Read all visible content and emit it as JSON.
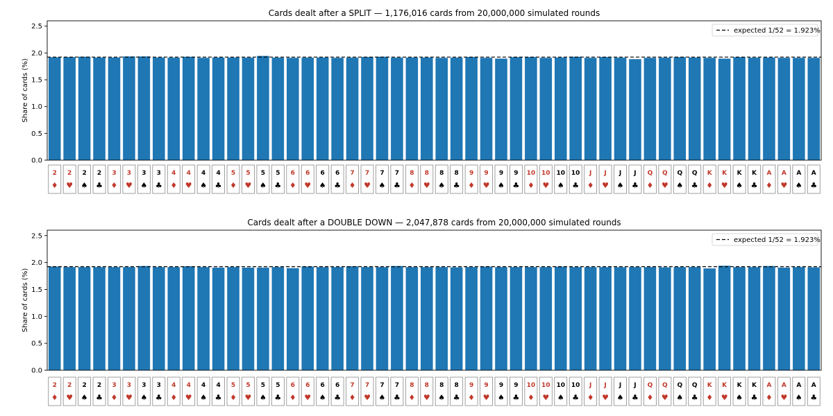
{
  "colors": {
    "bar": "#1f77b4",
    "red_suit": "#c0392b",
    "black_suit": "#000000",
    "expected_line": "#000000"
  },
  "cards": {
    "ranks": [
      "2",
      "2",
      "2",
      "2",
      "3",
      "3",
      "3",
      "3",
      "4",
      "4",
      "4",
      "4",
      "5",
      "5",
      "5",
      "5",
      "6",
      "6",
      "6",
      "6",
      "7",
      "7",
      "7",
      "7",
      "8",
      "8",
      "8",
      "8",
      "9",
      "9",
      "9",
      "9",
      "10",
      "10",
      "10",
      "10",
      "J",
      "J",
      "J",
      "J",
      "Q",
      "Q",
      "Q",
      "Q",
      "K",
      "K",
      "K",
      "K",
      "A",
      "A",
      "A",
      "A"
    ],
    "suits": [
      "♦",
      "♥",
      "♠",
      "♣",
      "♦",
      "♥",
      "♠",
      "♣",
      "♦",
      "♥",
      "♠",
      "♣",
      "♦",
      "♥",
      "♠",
      "♣",
      "♦",
      "♥",
      "♠",
      "♣",
      "♦",
      "♥",
      "♠",
      "♣",
      "♦",
      "♥",
      "♠",
      "♣",
      "♦",
      "♥",
      "♠",
      "♣",
      "♦",
      "♥",
      "♠",
      "♣",
      "♦",
      "♥",
      "♠",
      "♣",
      "♦",
      "♥",
      "♠",
      "♣",
      "♦",
      "♥",
      "♠",
      "♣",
      "♦",
      "♥",
      "♠",
      "♣"
    ],
    "red": [
      true,
      true,
      false,
      false,
      true,
      true,
      false,
      false,
      true,
      true,
      false,
      false,
      true,
      true,
      false,
      false,
      true,
      true,
      false,
      false,
      true,
      true,
      false,
      false,
      true,
      true,
      false,
      false,
      true,
      true,
      false,
      false,
      true,
      true,
      false,
      false,
      true,
      true,
      false,
      false,
      true,
      true,
      false,
      false,
      true,
      true,
      false,
      false,
      true,
      true,
      false,
      false
    ]
  },
  "chart_data": [
    {
      "type": "bar",
      "title": "Cards dealt after a SPLIT  —  1,176,016 cards from 20,000,000 simulated rounds",
      "xlabel": "",
      "ylabel": "Share of cards (%)",
      "ylim": [
        0,
        2.6
      ],
      "yticks": [
        "0.0",
        "0.5",
        "1.0",
        "1.5",
        "2.0",
        "2.5"
      ],
      "grid": false,
      "legend_position": "top-right",
      "reference_line": {
        "label": "expected 1/52 = 1.923%",
        "value": 1.923
      },
      "values": [
        1.92,
        1.923,
        1.93,
        1.915,
        1.915,
        1.935,
        1.935,
        1.915,
        1.913,
        1.93,
        1.91,
        1.915,
        1.915,
        1.913,
        1.945,
        1.913,
        1.91,
        1.913,
        1.915,
        1.91,
        1.913,
        1.925,
        1.93,
        1.913,
        1.915,
        1.915,
        1.91,
        1.913,
        1.925,
        1.91,
        1.895,
        1.923,
        1.925,
        1.91,
        1.915,
        1.93,
        1.91,
        1.925,
        1.913,
        1.885,
        1.91,
        1.913,
        1.923,
        1.915,
        1.91,
        1.895,
        1.923,
        1.913,
        1.915,
        1.91,
        1.91,
        1.91
      ]
    },
    {
      "type": "bar",
      "title": "Cards dealt after a DOUBLE DOWN  —  2,047,878 cards from 20,000,000 simulated rounds",
      "xlabel": "",
      "ylabel": "Share of cards (%)",
      "ylim": [
        0,
        2.6
      ],
      "yticks": [
        "0.0",
        "0.5",
        "1.0",
        "1.5",
        "2.0",
        "2.5"
      ],
      "grid": false,
      "legend_position": "top-right",
      "reference_line": {
        "label": "expected 1/52 = 1.923%",
        "value": 1.923
      },
      "values": [
        1.925,
        1.915,
        1.915,
        1.915,
        1.915,
        1.915,
        1.935,
        1.915,
        1.915,
        1.93,
        1.915,
        1.905,
        1.915,
        1.905,
        1.905,
        1.915,
        1.895,
        1.925,
        1.915,
        1.915,
        1.93,
        1.915,
        1.915,
        1.935,
        1.915,
        1.915,
        1.915,
        1.91,
        1.915,
        1.923,
        1.915,
        1.915,
        1.915,
        1.915,
        1.923,
        1.915,
        1.915,
        1.915,
        1.913,
        1.915,
        1.915,
        1.91,
        1.915,
        1.915,
        1.89,
        1.94,
        1.915,
        1.915,
        1.935,
        1.905,
        1.915,
        1.91
      ]
    }
  ]
}
